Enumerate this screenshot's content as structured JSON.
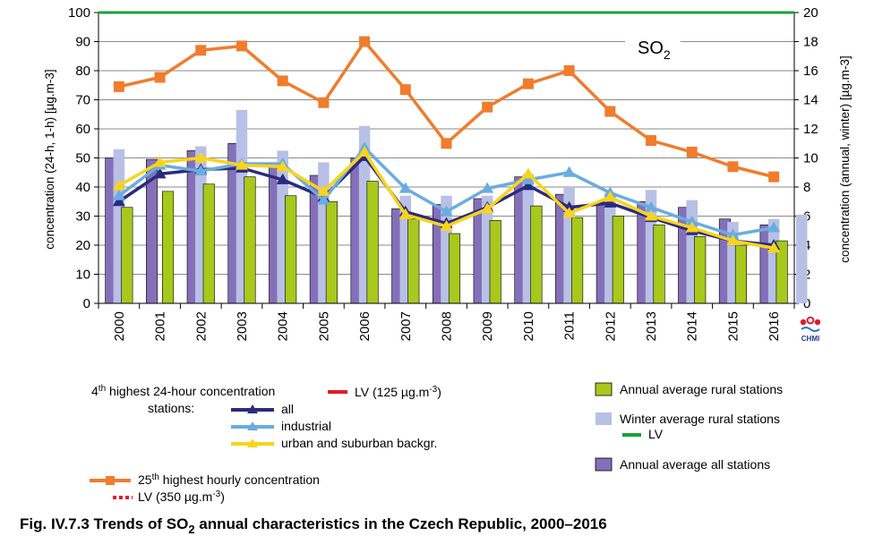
{
  "chart_data": {
    "type": "bar",
    "categories": [
      "2000",
      "2001",
      "2002",
      "2003",
      "2004",
      "2005",
      "2006",
      "2007",
      "2008",
      "2009",
      "2010",
      "2011",
      "2012",
      "2013",
      "2014",
      "2015",
      "2016"
    ],
    "y_left": {
      "label": "concentration (24-h, 1-h) [µg.m-3]",
      "lim": [
        0,
        100
      ],
      "ticks": [
        0,
        10,
        20,
        30,
        40,
        50,
        60,
        70,
        80,
        90,
        100
      ]
    },
    "y_right": {
      "label": "concentration (annual, winter) [µg.m-3]",
      "lim": [
        0,
        20
      ],
      "ticks": [
        0,
        2,
        4,
        6,
        8,
        10,
        12,
        14,
        16,
        18,
        20
      ]
    },
    "grid": true,
    "annotation": {
      "text": "SO",
      "sub": "2"
    },
    "bars": [
      {
        "name": "Annual average all stations",
        "axis": "right",
        "color": "#8470b8",
        "values": [
          10.0,
          9.9,
          10.5,
          11.0,
          9.5,
          8.8,
          10.0,
          6.5,
          6.8,
          7.2,
          8.7,
          7.5,
          7.0,
          7.0,
          6.6,
          5.8,
          5.4
        ]
      },
      {
        "name": "Winter average rural stations",
        "axis": "right",
        "color": "#b8c0e6",
        "values": [
          10.6,
          null,
          10.8,
          13.3,
          10.5,
          9.7,
          12.2,
          7.4,
          7.4,
          7.4,
          8.9,
          8.0,
          7.6,
          7.8,
          7.1,
          5.6,
          5.8
        ]
      },
      {
        "name": "Annual average rural stations",
        "axis": "right",
        "color": "#a8c81c",
        "values": [
          6.6,
          7.7,
          8.2,
          8.7,
          7.4,
          7.0,
          8.4,
          5.8,
          4.8,
          5.7,
          6.7,
          5.9,
          6.0,
          5.4,
          4.6,
          4.0,
          4.3
        ]
      },
      {
        "name": "",
        "axis": "right",
        "color": "#b8c0e6",
        "values": [
          null,
          null,
          null,
          null,
          null,
          null,
          null,
          null,
          null,
          null,
          null,
          null,
          null,
          null,
          null,
          null,
          6.1
        ]
      }
    ],
    "lines": [
      {
        "name": "25th highest hourly concentration",
        "axis": "left",
        "color": "#f07c2c",
        "marker": "square",
        "values": [
          74.5,
          77.7,
          87.0,
          88.5,
          76.5,
          69.0,
          90.0,
          73.5,
          55.0,
          67.5,
          75.5,
          80.0,
          66.0,
          56.0,
          52.0,
          47.0,
          43.5
        ]
      },
      {
        "name": "all",
        "axis": "left",
        "color": "#2a2a80",
        "marker": "triangle",
        "values": [
          35.0,
          44.5,
          46.0,
          46.5,
          42.5,
          36.5,
          50.5,
          31.5,
          27.5,
          33.0,
          40.5,
          33.0,
          34.5,
          29.5,
          25.0,
          21.5,
          20.0
        ]
      },
      {
        "name": "industrial",
        "axis": "left",
        "color": "#6aace0",
        "marker": "triangle",
        "values": [
          37.0,
          47.5,
          45.5,
          48.0,
          48.0,
          35.5,
          53.5,
          39.5,
          31.5,
          39.5,
          42.5,
          45.0,
          38.0,
          33.0,
          28.0,
          23.5,
          26.0
        ]
      },
      {
        "name": "urban and suburban backgr.",
        "axis": "left",
        "color": "#f8d41c",
        "marker": "triangle",
        "values": [
          40.5,
          48.5,
          50.0,
          47.5,
          47.0,
          38.5,
          52.0,
          30.5,
          26.5,
          32.5,
          44.5,
          31.0,
          36.5,
          30.0,
          26.0,
          21.5,
          19.0
        ]
      },
      {
        "name": "LV",
        "axis": "right",
        "color": "#17a03a",
        "marker": "none",
        "values": [
          20,
          20,
          20,
          20,
          20,
          20,
          20,
          20,
          20,
          20,
          20,
          20,
          20,
          20,
          20,
          20,
          20
        ]
      }
    ]
  },
  "legend": {
    "group1_title_a": "4",
    "group1_title_sup": "th",
    "group1_title_b": " highest 24-hour concentration",
    "group1_title_c": "stations:",
    "all": "all",
    "industrial": "industrial",
    "urban": "urban and suburban backgr.",
    "lv125": "LV (125 µg.m",
    "lv125_sup": "-3",
    "lv125_end": ")",
    "h25_a": "25",
    "h25_sup": "th",
    "h25_b": " highest hourly concentration",
    "lv350": "LV (350 µg.m",
    "lv350_sup": "-3",
    "lv350_end": ")",
    "annual_rural": "Annual average rural stations",
    "winter_rural": "Winter average rural stations",
    "lv_green": "LV",
    "annual_all": "Annual average all stations"
  },
  "logo": {
    "text": "CHMI"
  },
  "caption": {
    "a": "Fig. IV.7.3  Trends of SO",
    "sub": "2",
    "b": " annual characteristics in the Czech Republic, 2000–2016"
  }
}
